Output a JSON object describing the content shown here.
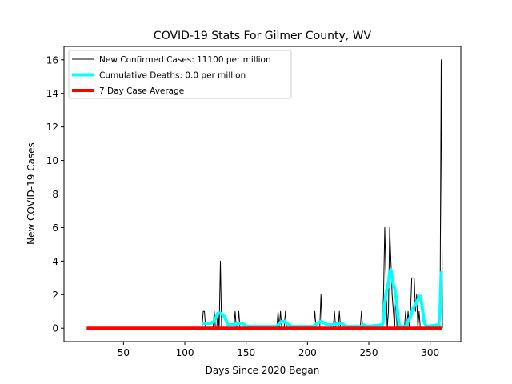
{
  "chart_data": {
    "type": "line",
    "title": "COVID-19 Stats For Gilmer County, WV",
    "xlabel": "Days Since 2020 Began",
    "ylabel": "New COVID-19 Cases",
    "xlim": [
      1.5,
      325
    ],
    "ylim": [
      -0.8,
      16.8
    ],
    "xticks": [
      50,
      100,
      150,
      200,
      250,
      300
    ],
    "yticks": [
      0,
      2,
      4,
      6,
      8,
      10,
      12,
      14,
      16
    ],
    "grid": false,
    "legend_position": "top-left",
    "series": [
      {
        "name": "New Confirmed Cases: 11100 per million",
        "color": "#000000",
        "line_width": 1,
        "points": [
          [
            20,
            0
          ],
          [
            114,
            0
          ],
          [
            115,
            1
          ],
          [
            116,
            1
          ],
          [
            117,
            0
          ],
          [
            123,
            0
          ],
          [
            124,
            1
          ],
          [
            125,
            0
          ],
          [
            126,
            0
          ],
          [
            127,
            1
          ],
          [
            128,
            0
          ],
          [
            129,
            4
          ],
          [
            130,
            0
          ],
          [
            140,
            0
          ],
          [
            141,
            1
          ],
          [
            142,
            0
          ],
          [
            143,
            0
          ],
          [
            144,
            1
          ],
          [
            145,
            0
          ],
          [
            175,
            0
          ],
          [
            176,
            1
          ],
          [
            177,
            0
          ],
          [
            178,
            1
          ],
          [
            179,
            0
          ],
          [
            181,
            0
          ],
          [
            182,
            1
          ],
          [
            183,
            0
          ],
          [
            205,
            0
          ],
          [
            206,
            1
          ],
          [
            207,
            0
          ],
          [
            210,
            0
          ],
          [
            211,
            2
          ],
          [
            212,
            0
          ],
          [
            221,
            0
          ],
          [
            222,
            1
          ],
          [
            223,
            0
          ],
          [
            225,
            0
          ],
          [
            226,
            1
          ],
          [
            227,
            0
          ],
          [
            243,
            0
          ],
          [
            244,
            1
          ],
          [
            245,
            0
          ],
          [
            261,
            0
          ],
          [
            262,
            2
          ],
          [
            263,
            6
          ],
          [
            264,
            3
          ],
          [
            265,
            0
          ],
          [
            266,
            1
          ],
          [
            267,
            6
          ],
          [
            268,
            4
          ],
          [
            269,
            2
          ],
          [
            270,
            1
          ],
          [
            271,
            0
          ],
          [
            272,
            2
          ],
          [
            273,
            0
          ],
          [
            274,
            0
          ],
          [
            275,
            0
          ],
          [
            276,
            0
          ],
          [
            277,
            0
          ],
          [
            278,
            0
          ],
          [
            279,
            0
          ],
          [
            280,
            1
          ],
          [
            281,
            0
          ],
          [
            282,
            1
          ],
          [
            283,
            0
          ],
          [
            284,
            1
          ],
          [
            285,
            3
          ],
          [
            286,
            3
          ],
          [
            287,
            3
          ],
          [
            288,
            1
          ],
          [
            289,
            2
          ],
          [
            290,
            0
          ],
          [
            291,
            1
          ],
          [
            292,
            0
          ],
          [
            293,
            0
          ],
          [
            308,
            0
          ],
          [
            309,
            16
          ],
          [
            310,
            0
          ]
        ]
      },
      {
        "name": "Cumulative Deaths: 0.0 per million",
        "color": "#00ffff",
        "line_width": 4,
        "points": [
          [
            114,
            0.3
          ],
          [
            116,
            0.3
          ],
          [
            118,
            0.3
          ],
          [
            121,
            0.3
          ],
          [
            124,
            0.4
          ],
          [
            127,
            0.9
          ],
          [
            129,
            0.9
          ],
          [
            131,
            0.8
          ],
          [
            133,
            0.6
          ],
          [
            135,
            0.2
          ],
          [
            137,
            0.2
          ],
          [
            140,
            0.2
          ],
          [
            143,
            0.3
          ],
          [
            146,
            0.3
          ],
          [
            149,
            0.2
          ],
          [
            150,
            0.1
          ],
          [
            175,
            0.1
          ],
          [
            177,
            0.3
          ],
          [
            179,
            0.4
          ],
          [
            181,
            0.4
          ],
          [
            183,
            0.3
          ],
          [
            185,
            0.2
          ],
          [
            187,
            0.1
          ],
          [
            205,
            0.1
          ],
          [
            208,
            0.3
          ],
          [
            211,
            0.4
          ],
          [
            214,
            0.3
          ],
          [
            216,
            0.2
          ],
          [
            222,
            0.2
          ],
          [
            225,
            0.3
          ],
          [
            228,
            0.3
          ],
          [
            231,
            0.1
          ],
          [
            244,
            0.1
          ],
          [
            246,
            0.2
          ],
          [
            248,
            0.1
          ],
          [
            261,
            0.2
          ],
          [
            262,
            0.5
          ],
          [
            263,
            1.5
          ],
          [
            264,
            2.1
          ],
          [
            265,
            2.4
          ],
          [
            266,
            2.6
          ],
          [
            267,
            3.4
          ],
          [
            268,
            3.5
          ],
          [
            269,
            3.0
          ],
          [
            270,
            2.6
          ],
          [
            271,
            2.4
          ],
          [
            272,
            2.0
          ],
          [
            273,
            1.3
          ],
          [
            274,
            0.6
          ],
          [
            275,
            0.1
          ],
          [
            280,
            0.1
          ],
          [
            282,
            0.4
          ],
          [
            284,
            0.7
          ],
          [
            286,
            1.2
          ],
          [
            288,
            1.4
          ],
          [
            290,
            1.7
          ],
          [
            291,
            1.9
          ],
          [
            292,
            1.9
          ],
          [
            293,
            1.5
          ],
          [
            294,
            1.0
          ],
          [
            295,
            0.4
          ],
          [
            297,
            0.1
          ],
          [
            307,
            0.2
          ],
          [
            308,
            0.8
          ],
          [
            309,
            3.3
          ],
          [
            310,
            3.3
          ]
        ]
      },
      {
        "name": "7 Day Case Average",
        "color": "#ff0000",
        "line_width": 4,
        "points": [
          [
            20,
            0
          ],
          [
            310,
            0
          ]
        ]
      }
    ]
  }
}
